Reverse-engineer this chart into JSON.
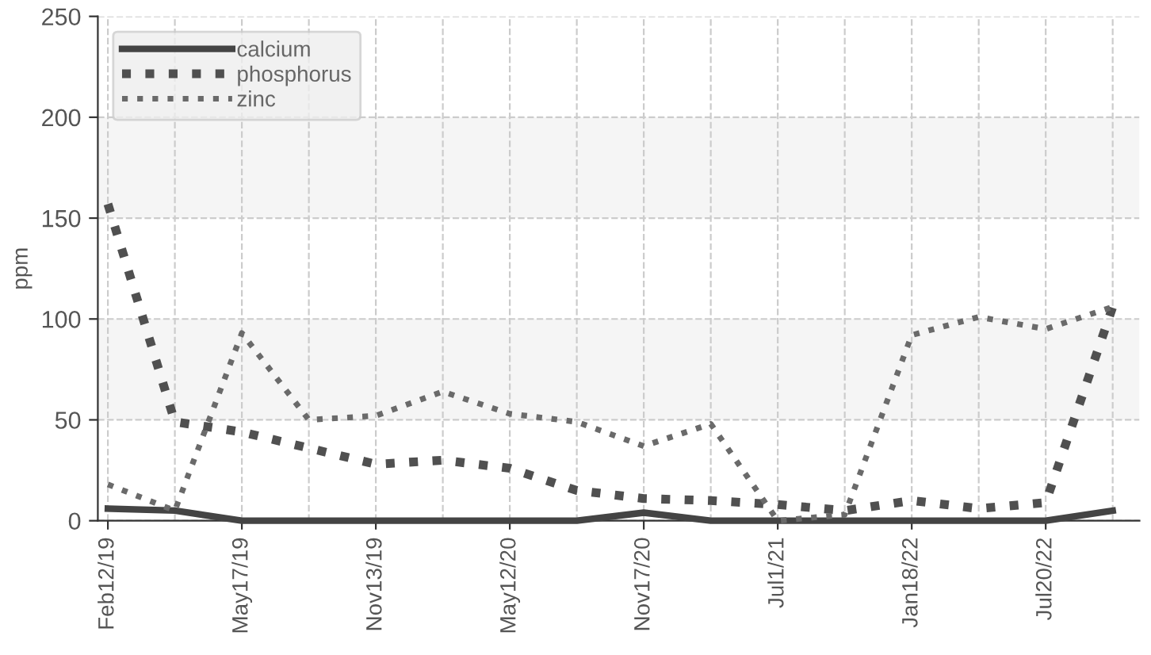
{
  "chart_data": {
    "type": "line",
    "ylabel": "ppm",
    "categories": [
      "Feb12/19",
      null,
      "May17/19",
      null,
      "Nov13/19",
      null,
      "May12/20",
      null,
      "Nov17/20",
      null,
      "Jul1/21",
      null,
      "Jan18/22",
      null,
      "Jul20/22",
      null
    ],
    "series": [
      {
        "name": "calcium",
        "color": "#444444",
        "line_style": "solid",
        "values": [
          6,
          5,
          0,
          0,
          0,
          0,
          0,
          0,
          4,
          0,
          0,
          0,
          0,
          0,
          0,
          5
        ]
      },
      {
        "name": "phosphorus",
        "color": "#505050",
        "line_style": "dotted",
        "values": [
          157,
          49,
          44,
          36,
          28,
          30,
          26,
          15,
          11,
          10,
          8,
          5,
          10,
          6,
          9,
          106
        ]
      },
      {
        "name": "zinc",
        "color": "#6a6a6a",
        "line_style": "dotted",
        "values": [
          18,
          5,
          93,
          50,
          52,
          64,
          53,
          49,
          37,
          48,
          0,
          3,
          92,
          101,
          95,
          106
        ]
      }
    ],
    "ylim": [
      0,
      250
    ],
    "yticks": [
      0,
      50,
      100,
      150,
      200,
      250
    ],
    "bands": [
      {
        "axis": "y",
        "from": 50,
        "to": 100,
        "color": "#f5f5f5"
      },
      {
        "axis": "y",
        "from": 150,
        "to": 200,
        "color": "#f5f5f5"
      }
    ],
    "grid": true,
    "legend": "top left",
    "marker": "none"
  }
}
